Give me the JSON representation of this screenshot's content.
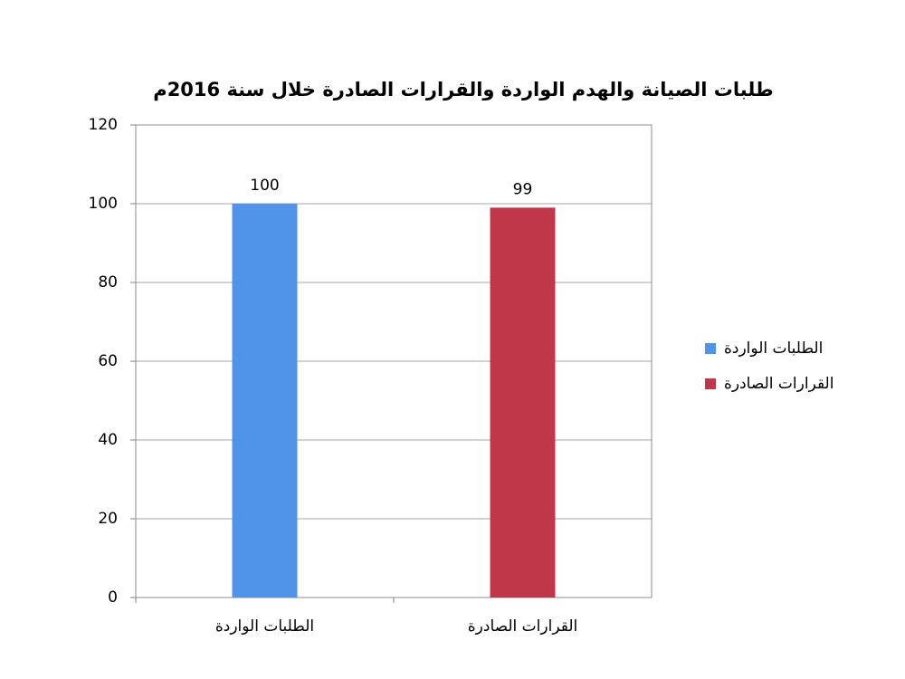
{
  "chart_data": {
    "type": "bar",
    "title": "طلبات الصيانة والهدم الواردة والقرارات الصادرة خلال سنة 2016م",
    "categories": [
      "الطلبات الواردة",
      "القرارات الصادرة"
    ],
    "series": [
      {
        "name": "الطلبات الواردة",
        "color": "#4f94e8",
        "values": [
          100,
          null
        ]
      },
      {
        "name": "القرارات الصادرة",
        "color": "#c0374a",
        "values": [
          null,
          99
        ]
      }
    ],
    "ylim": [
      0,
      120
    ],
    "yticks": [
      0,
      20,
      40,
      60,
      80,
      100,
      120
    ],
    "grid": true,
    "legend": "right"
  }
}
